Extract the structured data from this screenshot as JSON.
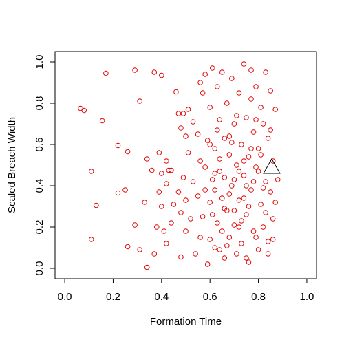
{
  "chart_data": {
    "type": "scatter",
    "xlabel": "Formation Time",
    "ylabel": "Scaled Breach Width",
    "xlim": [
      -0.04,
      1.04
    ],
    "ylim": [
      -0.05,
      1.05
    ],
    "xticks": [
      {
        "value": 0,
        "label": "0.0"
      },
      0.2,
      0.4,
      0.6,
      0.8,
      {
        "value": 1,
        "label": "1.0"
      }
    ],
    "yticks": [
      {
        "value": 0,
        "label": "0.0"
      },
      0.2,
      0.4,
      0.6,
      0.8,
      {
        "value": 1,
        "label": "1.0"
      }
    ],
    "series": [
      {
        "color": "#e00000",
        "shape": "circle",
        "x": [
          0.065,
          0.08,
          0.11,
          0.11,
          0.13,
          0.155,
          0.17,
          0.22,
          0.22,
          0.25,
          0.26,
          0.26,
          0.29,
          0.29,
          0.31,
          0.31,
          0.33,
          0.34,
          0.34,
          0.36,
          0.37,
          0.37,
          0.38,
          0.39,
          0.39,
          0.4,
          0.4,
          0.4,
          0.41,
          0.42,
          0.42,
          0.42,
          0.43,
          0.44,
          0.44,
          0.45,
          0.46,
          0.47,
          0.47,
          0.48,
          0.48,
          0.48,
          0.49,
          0.49,
          0.5,
          0.5,
          0.5,
          0.51,
          0.51,
          0.52,
          0.53,
          0.53,
          0.54,
          0.55,
          0.55,
          0.56,
          0.56,
          0.57,
          0.57,
          0.58,
          0.58,
          0.59,
          0.59,
          0.6,
          0.6,
          0.61,
          0.61,
          0.62,
          0.62,
          0.63,
          0.63,
          0.64,
          0.64,
          0.65,
          0.65,
          0.66,
          0.66,
          0.67,
          0.67,
          0.68,
          0.68,
          0.69,
          0.69,
          0.7,
          0.7,
          0.71,
          0.71,
          0.72,
          0.72,
          0.73,
          0.73,
          0.74,
          0.74,
          0.75,
          0.75,
          0.76,
          0.76,
          0.77,
          0.77,
          0.78,
          0.78,
          0.79,
          0.79,
          0.8,
          0.8,
          0.81,
          0.81,
          0.82,
          0.82,
          0.83,
          0.83,
          0.84,
          0.84,
          0.85,
          0.85,
          0.86,
          0.86,
          0.87,
          0.87,
          0.88,
          0.6,
          0.62,
          0.64,
          0.66,
          0.68,
          0.7,
          0.72,
          0.74,
          0.76,
          0.78,
          0.61,
          0.63,
          0.65,
          0.67,
          0.69,
          0.71,
          0.73,
          0.75,
          0.77,
          0.79,
          0.8,
          0.81,
          0.82,
          0.83,
          0.84,
          0.85,
          0.86,
          0.79,
          0.77,
          0.75,
          0.74,
          0.72,
          0.7,
          0.68,
          0.66,
          0.64,
          0.62,
          0.6,
          0.58,
          0.56
        ],
        "y": [
          0.775,
          0.765,
          0.47,
          0.14,
          0.305,
          0.715,
          0.945,
          0.595,
          0.365,
          0.38,
          0.565,
          0.105,
          0.96,
          0.21,
          0.81,
          0.09,
          0.32,
          0.005,
          0.53,
          0.475,
          0.95,
          0.07,
          0.2,
          0.56,
          0.37,
          0.935,
          0.46,
          0.3,
          0.18,
          0.52,
          0.41,
          0.12,
          0.475,
          0.475,
          0.22,
          0.31,
          0.855,
          0.75,
          0.37,
          0.68,
          0.27,
          0.055,
          0.75,
          0.44,
          0.64,
          0.33,
          0.18,
          0.77,
          0.56,
          0.24,
          0.71,
          0.42,
          0.07,
          0.65,
          0.35,
          0.9,
          0.15,
          0.85,
          0.25,
          0.94,
          0.49,
          0.62,
          0.02,
          0.78,
          0.32,
          0.97,
          0.43,
          0.58,
          0.1,
          0.88,
          0.22,
          0.72,
          0.47,
          0.95,
          0.34,
          0.63,
          0.05,
          0.8,
          0.28,
          0.55,
          0.15,
          0.92,
          0.4,
          0.7,
          0.21,
          0.5,
          0.07,
          0.85,
          0.33,
          0.6,
          0.12,
          0.99,
          0.45,
          0.73,
          0.26,
          0.54,
          0.03,
          0.96,
          0.38,
          0.66,
          0.18,
          0.88,
          0.49,
          0.58,
          0.09,
          0.78,
          0.31,
          0.7,
          0.2,
          0.95,
          0.42,
          0.63,
          0.13,
          0.86,
          0.37,
          0.52,
          0.24,
          0.77,
          0.32,
          0.43,
          0.6,
          0.38,
          0.53,
          0.44,
          0.36,
          0.28,
          0.47,
          0.52,
          0.3,
          0.42,
          0.26,
          0.67,
          0.18,
          0.11,
          0.61,
          0.74,
          0.23,
          0.05,
          0.82,
          0.15,
          0.47,
          0.55,
          0.39,
          0.27,
          0.07,
          0.67,
          0.14,
          0.72,
          0.58,
          0.4,
          0.34,
          0.2,
          0.43,
          0.64,
          0.29,
          0.09,
          0.46,
          0.14,
          0.38,
          0.52
        ]
      },
      {
        "color": "#000000",
        "shape": "triangle",
        "x": [
          0.855
        ],
        "y": [
          0.49
        ]
      }
    ]
  }
}
